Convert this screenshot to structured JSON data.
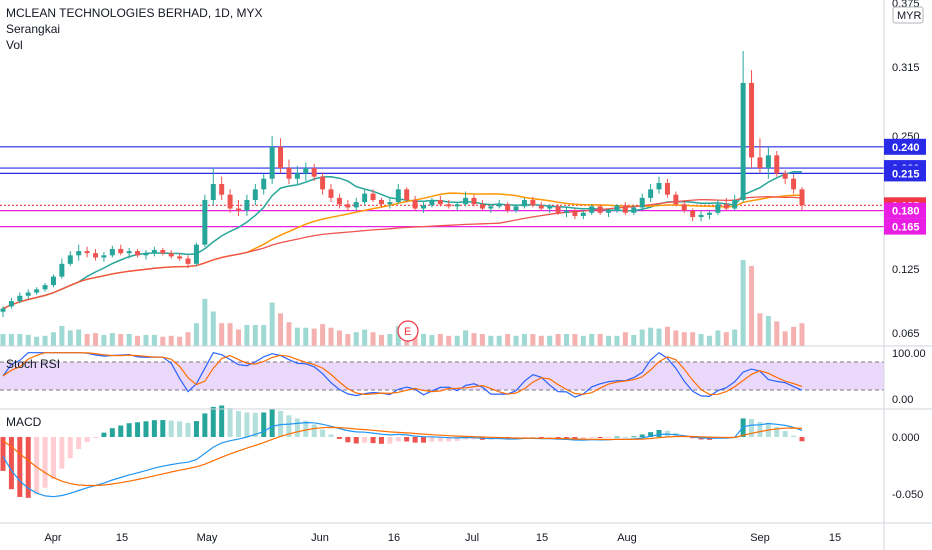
{
  "header": {
    "title": "MCLEAN TECHNOLOGIES BERHAD, 1D, MYX",
    "indicator": "Serangkai",
    "volume_label": "Vol",
    "currency": "MYR"
  },
  "panes": {
    "stoch_label": "Stoch RSI",
    "macd_label": "MACD"
  },
  "event_marker": "E",
  "chart_data": {
    "type": "candlestick",
    "symbol": "MCLEAN TECHNOLOGIES BERHAD",
    "interval": "1D",
    "exchange": "MYX",
    "price_axis": {
      "ticks": [
        "0.375",
        "0.315",
        "0.250",
        "0.125",
        "0.065"
      ],
      "range": [
        0.055,
        0.375
      ]
    },
    "x_axis_labels": [
      "Apr",
      "15",
      "May",
      "Jun",
      "16",
      "Jul",
      "15",
      "Aug",
      "Sep",
      "15"
    ],
    "horizontal_levels": [
      {
        "label": "0.240",
        "value": 0.24,
        "color": "#2929e8"
      },
      {
        "label": "0.220",
        "value": 0.22,
        "color": "#2929e8"
      },
      {
        "label": "0.215",
        "value": 0.215,
        "color": "#2929e8"
      },
      {
        "label": "0.185",
        "value": 0.185,
        "color": "#f23645"
      },
      {
        "label": "0.180",
        "value": 0.18,
        "color": "#e91ee3"
      },
      {
        "label": "0.165",
        "value": 0.165,
        "color": "#e91ee3"
      }
    ],
    "ohlc": [
      [
        0.085,
        0.09,
        0.08,
        0.088
      ],
      [
        0.09,
        0.098,
        0.088,
        0.095
      ],
      [
        0.095,
        0.103,
        0.093,
        0.1
      ],
      [
        0.1,
        0.106,
        0.097,
        0.103
      ],
      [
        0.103,
        0.108,
        0.101,
        0.106
      ],
      [
        0.106,
        0.112,
        0.104,
        0.11
      ],
      [
        0.11,
        0.12,
        0.108,
        0.118
      ],
      [
        0.118,
        0.135,
        0.116,
        0.13
      ],
      [
        0.13,
        0.142,
        0.128,
        0.138
      ],
      [
        0.138,
        0.148,
        0.133,
        0.142
      ],
      [
        0.142,
        0.146,
        0.136,
        0.14
      ],
      [
        0.14,
        0.144,
        0.133,
        0.136
      ],
      [
        0.136,
        0.141,
        0.132,
        0.138
      ],
      [
        0.138,
        0.147,
        0.136,
        0.144
      ],
      [
        0.144,
        0.148,
        0.138,
        0.14
      ],
      [
        0.14,
        0.145,
        0.135,
        0.142
      ],
      [
        0.142,
        0.144,
        0.136,
        0.138
      ],
      [
        0.138,
        0.143,
        0.134,
        0.14
      ],
      [
        0.14,
        0.146,
        0.137,
        0.143
      ],
      [
        0.143,
        0.145,
        0.138,
        0.14
      ],
      [
        0.14,
        0.143,
        0.135,
        0.137
      ],
      [
        0.137,
        0.14,
        0.133,
        0.135
      ],
      [
        0.135,
        0.138,
        0.126,
        0.13
      ],
      [
        0.13,
        0.15,
        0.128,
        0.148
      ],
      [
        0.148,
        0.195,
        0.146,
        0.19
      ],
      [
        0.19,
        0.22,
        0.185,
        0.205
      ],
      [
        0.205,
        0.212,
        0.19,
        0.195
      ],
      [
        0.195,
        0.2,
        0.178,
        0.182
      ],
      [
        0.182,
        0.19,
        0.175,
        0.18
      ],
      [
        0.18,
        0.195,
        0.175,
        0.19
      ],
      [
        0.19,
        0.205,
        0.185,
        0.2
      ],
      [
        0.2,
        0.215,
        0.195,
        0.21
      ],
      [
        0.21,
        0.25,
        0.205,
        0.24
      ],
      [
        0.24,
        0.248,
        0.215,
        0.22
      ],
      [
        0.22,
        0.228,
        0.205,
        0.21
      ],
      [
        0.21,
        0.222,
        0.205,
        0.215
      ],
      [
        0.215,
        0.225,
        0.208,
        0.22
      ],
      [
        0.22,
        0.224,
        0.208,
        0.212
      ],
      [
        0.212,
        0.216,
        0.195,
        0.2
      ],
      [
        0.2,
        0.205,
        0.188,
        0.192
      ],
      [
        0.192,
        0.196,
        0.182,
        0.186
      ],
      [
        0.186,
        0.19,
        0.18,
        0.183
      ],
      [
        0.183,
        0.192,
        0.18,
        0.188
      ],
      [
        0.188,
        0.2,
        0.185,
        0.196
      ],
      [
        0.196,
        0.2,
        0.188,
        0.19
      ],
      [
        0.19,
        0.192,
        0.183,
        0.186
      ],
      [
        0.186,
        0.192,
        0.182,
        0.188
      ],
      [
        0.188,
        0.205,
        0.186,
        0.2
      ],
      [
        0.2,
        0.202,
        0.188,
        0.19
      ],
      [
        0.19,
        0.194,
        0.18,
        0.182
      ],
      [
        0.182,
        0.188,
        0.178,
        0.185
      ],
      [
        0.185,
        0.192,
        0.183,
        0.19
      ],
      [
        0.19,
        0.194,
        0.184,
        0.186
      ],
      [
        0.186,
        0.19,
        0.182,
        0.184
      ],
      [
        0.184,
        0.188,
        0.18,
        0.186
      ],
      [
        0.186,
        0.198,
        0.184,
        0.192
      ],
      [
        0.192,
        0.195,
        0.184,
        0.186
      ],
      [
        0.186,
        0.19,
        0.18,
        0.182
      ],
      [
        0.182,
        0.186,
        0.178,
        0.184
      ],
      [
        0.184,
        0.19,
        0.182,
        0.186
      ],
      [
        0.186,
        0.188,
        0.178,
        0.18
      ],
      [
        0.18,
        0.186,
        0.178,
        0.184
      ],
      [
        0.184,
        0.192,
        0.182,
        0.19
      ],
      [
        0.19,
        0.193,
        0.183,
        0.185
      ],
      [
        0.185,
        0.188,
        0.18,
        0.182
      ],
      [
        0.182,
        0.186,
        0.178,
        0.184
      ],
      [
        0.184,
        0.186,
        0.176,
        0.178
      ],
      [
        0.178,
        0.184,
        0.174,
        0.18
      ],
      [
        0.18,
        0.182,
        0.172,
        0.175
      ],
      [
        0.175,
        0.18,
        0.172,
        0.178
      ],
      [
        0.178,
        0.186,
        0.176,
        0.184
      ],
      [
        0.184,
        0.186,
        0.176,
        0.178
      ],
      [
        0.178,
        0.182,
        0.174,
        0.18
      ],
      [
        0.18,
        0.186,
        0.178,
        0.185
      ],
      [
        0.185,
        0.188,
        0.176,
        0.178
      ],
      [
        0.178,
        0.185,
        0.176,
        0.183
      ],
      [
        0.183,
        0.196,
        0.181,
        0.192
      ],
      [
        0.192,
        0.205,
        0.188,
        0.2
      ],
      [
        0.2,
        0.212,
        0.196,
        0.206
      ],
      [
        0.206,
        0.21,
        0.192,
        0.195
      ],
      [
        0.195,
        0.198,
        0.184,
        0.186
      ],
      [
        0.186,
        0.19,
        0.178,
        0.18
      ],
      [
        0.18,
        0.182,
        0.17,
        0.174
      ],
      [
        0.174,
        0.18,
        0.17,
        0.176
      ],
      [
        0.176,
        0.18,
        0.172,
        0.178
      ],
      [
        0.178,
        0.19,
        0.176,
        0.186
      ],
      [
        0.186,
        0.192,
        0.18,
        0.182
      ],
      [
        0.182,
        0.195,
        0.18,
        0.19
      ],
      [
        0.19,
        0.33,
        0.188,
        0.3
      ],
      [
        0.3,
        0.312,
        0.22,
        0.23
      ],
      [
        0.23,
        0.248,
        0.215,
        0.22
      ],
      [
        0.22,
        0.24,
        0.21,
        0.232
      ],
      [
        0.232,
        0.236,
        0.212,
        0.215
      ],
      [
        0.215,
        0.218,
        0.205,
        0.21
      ],
      [
        0.21,
        0.214,
        0.196,
        0.2
      ],
      [
        0.2,
        0.202,
        0.18,
        0.185
      ]
    ],
    "stoch_rsi": {
      "levels": [
        "100.00",
        "0.00"
      ],
      "bands": [
        80,
        20
      ]
    },
    "macd": {
      "ticks": [
        "0.000",
        "-0.050"
      ],
      "range": [
        -0.062,
        0.022
      ]
    }
  }
}
